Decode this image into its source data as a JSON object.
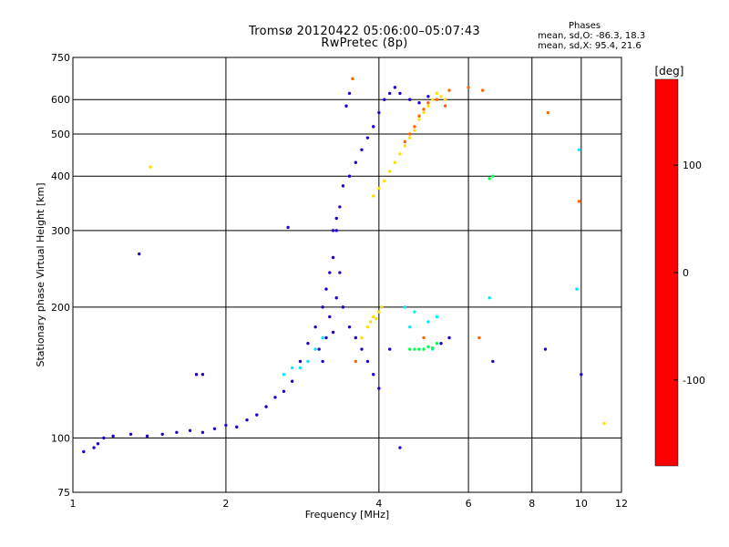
{
  "chart_data": {
    "type": "scatter",
    "title": "Tromsø 20120422 05:06:00–05:07:43",
    "subtitle": "RwPretec (8p)",
    "xlabel": "Frequency [MHz]",
    "ylabel": "Stationary phase Virtual Height [km]",
    "x_scale": "log",
    "y_scale": "log",
    "xlim": [
      1,
      12
    ],
    "ylim": [
      75,
      750
    ],
    "x_ticks": [
      1,
      2,
      4,
      6,
      8,
      10,
      12
    ],
    "y_ticks": [
      75,
      100,
      200,
      300,
      400,
      500,
      600,
      750
    ],
    "grid": true,
    "colorbar": {
      "label": "[deg]",
      "range": [
        -180,
        180
      ],
      "ticks": [
        100,
        0,
        -100
      ],
      "colors": [
        "#ff0000",
        "#ff8000",
        "#ffff00",
        "#00ff00",
        "#00ffff",
        "#0000ff",
        "#500080",
        "#000000"
      ]
    },
    "stats": {
      "heading": "Phases",
      "line_o": "mean, sd,O:  -86.3, 18.3",
      "line_x": "mean, sd,X:  95.4, 21.6"
    },
    "series": [
      {
        "phase": -100,
        "points": [
          [
            1.05,
            93
          ],
          [
            1.1,
            95
          ],
          [
            1.12,
            97
          ],
          [
            1.15,
            100
          ],
          [
            1.2,
            101
          ],
          [
            1.3,
            102
          ],
          [
            1.4,
            101
          ],
          [
            1.5,
            102
          ],
          [
            1.6,
            103
          ],
          [
            1.7,
            104
          ],
          [
            1.8,
            103
          ],
          [
            1.9,
            105
          ],
          [
            2.0,
            107
          ],
          [
            2.1,
            106
          ],
          [
            2.2,
            110
          ],
          [
            2.3,
            113
          ],
          [
            2.4,
            118
          ],
          [
            2.5,
            124
          ],
          [
            2.6,
            128
          ],
          [
            2.7,
            135
          ],
          [
            2.8,
            150
          ],
          [
            2.9,
            165
          ],
          [
            3.0,
            180
          ],
          [
            3.1,
            200
          ],
          [
            3.15,
            220
          ],
          [
            3.2,
            240
          ],
          [
            3.25,
            260
          ],
          [
            3.3,
            300
          ],
          [
            3.35,
            340
          ],
          [
            3.4,
            380
          ],
          [
            3.5,
            400
          ],
          [
            3.6,
            430
          ],
          [
            3.7,
            460
          ],
          [
            3.8,
            490
          ],
          [
            3.9,
            520
          ],
          [
            4.0,
            560
          ],
          [
            4.1,
            600
          ],
          [
            4.2,
            620
          ],
          [
            4.3,
            640
          ],
          [
            4.4,
            620
          ],
          [
            4.6,
            600
          ],
          [
            4.8,
            590
          ],
          [
            5.0,
            610
          ],
          [
            3.05,
            160
          ],
          [
            3.1,
            150
          ],
          [
            3.15,
            170
          ],
          [
            3.2,
            190
          ],
          [
            3.25,
            175
          ],
          [
            3.3,
            210
          ],
          [
            3.35,
            240
          ],
          [
            3.4,
            200
          ],
          [
            3.5,
            180
          ],
          [
            3.6,
            170
          ],
          [
            3.7,
            160
          ],
          [
            3.8,
            150
          ],
          [
            3.9,
            140
          ],
          [
            4.0,
            130
          ],
          [
            1.75,
            140
          ],
          [
            1.8,
            140
          ],
          [
            2.65,
            305
          ],
          [
            3.25,
            300
          ],
          [
            3.3,
            320
          ],
          [
            4.2,
            160
          ],
          [
            5.5,
            170
          ],
          [
            3.45,
            580
          ],
          [
            3.5,
            620
          ],
          [
            1.35,
            265
          ],
          [
            5.3,
            165
          ],
          [
            6.7,
            150
          ],
          [
            8.5,
            160
          ],
          [
            10.0,
            140
          ],
          [
            4.4,
            95
          ]
        ]
      },
      {
        "phase": -30,
        "points": [
          [
            2.6,
            140
          ],
          [
            2.7,
            145
          ],
          [
            2.8,
            145
          ],
          [
            2.9,
            150
          ],
          [
            3.0,
            160
          ],
          [
            3.1,
            170
          ],
          [
            4.5,
            200
          ],
          [
            4.7,
            195
          ],
          [
            5.0,
            185
          ],
          [
            5.2,
            190
          ],
          [
            6.6,
            210
          ],
          [
            9.9,
            460
          ],
          [
            9.8,
            220
          ],
          [
            4.6,
            180
          ],
          [
            5.1,
            160
          ]
        ]
      },
      {
        "phase": 10,
        "points": [
          [
            4.6,
            160
          ],
          [
            4.7,
            160
          ],
          [
            4.8,
            160
          ],
          [
            4.9,
            160
          ],
          [
            5.0,
            162
          ],
          [
            5.1,
            161
          ],
          [
            5.2,
            165
          ],
          [
            6.7,
            400
          ],
          [
            6.6,
            395
          ]
        ]
      },
      {
        "phase": 90,
        "points": [
          [
            3.7,
            170
          ],
          [
            3.8,
            180
          ],
          [
            3.85,
            185
          ],
          [
            3.9,
            190
          ],
          [
            3.95,
            188
          ],
          [
            4.0,
            195
          ],
          [
            4.05,
            200
          ],
          [
            3.9,
            360
          ],
          [
            4.0,
            375
          ],
          [
            4.1,
            390
          ],
          [
            4.2,
            410
          ],
          [
            4.3,
            430
          ],
          [
            4.4,
            450
          ],
          [
            4.5,
            470
          ],
          [
            4.6,
            490
          ],
          [
            4.7,
            510
          ],
          [
            4.8,
            540
          ],
          [
            4.9,
            560
          ],
          [
            5.0,
            580
          ],
          [
            5.1,
            600
          ],
          [
            5.2,
            620
          ],
          [
            5.3,
            610
          ],
          [
            5.4,
            600
          ],
          [
            1.42,
            420
          ],
          [
            11.1,
            108
          ]
        ]
      },
      {
        "phase": 140,
        "points": [
          [
            4.5,
            480
          ],
          [
            4.6,
            500
          ],
          [
            4.7,
            520
          ],
          [
            4.8,
            550
          ],
          [
            4.9,
            570
          ],
          [
            5.0,
            590
          ],
          [
            5.2,
            600
          ],
          [
            5.4,
            580
          ],
          [
            3.55,
            670
          ],
          [
            5.5,
            630
          ],
          [
            6.0,
            640
          ],
          [
            6.4,
            630
          ],
          [
            3.6,
            150
          ],
          [
            4.9,
            170
          ],
          [
            6.3,
            170
          ],
          [
            8.6,
            560
          ],
          [
            9.9,
            350
          ]
        ]
      }
    ]
  }
}
